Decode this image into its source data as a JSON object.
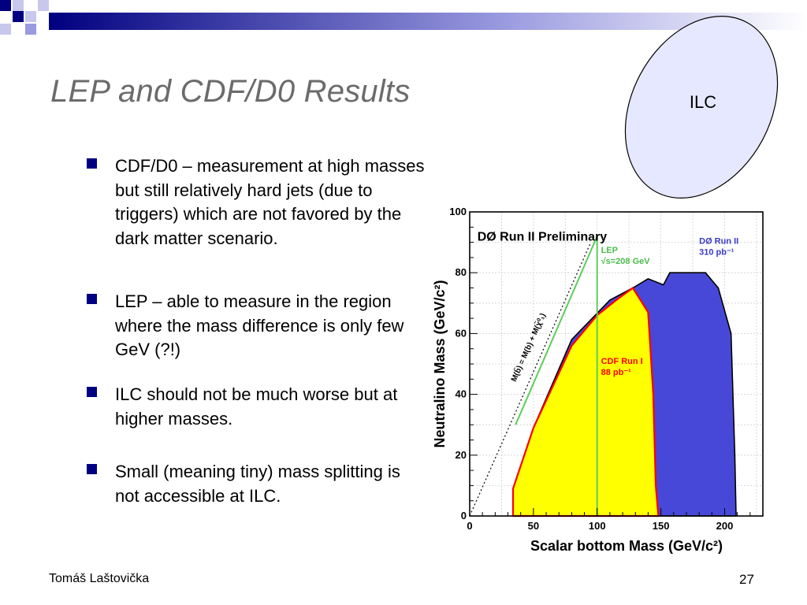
{
  "slide": {
    "title": "LEP and CDF/D0 Results",
    "ellipse_label": "ILC",
    "bullets": [
      "CDF/D0 – measurement at high masses but still relatively hard jets (due to triggers) which are not favored by the dark matter scenario.",
      "LEP – able to measure in the region where the mass difference is only few GeV (?!)",
      "ILC should not be much worse but at higher masses.",
      "Small (meaning tiny) mass splitting is not accessible at ILC."
    ],
    "footer_author": "Tomáš Laštovička",
    "page_number": "27",
    "colors": {
      "accent": "#000080",
      "title_gray": "#6b6b6b",
      "ellipse_fill": "#e6e8ff",
      "d0_region": "#4848d8",
      "cdf_region": "#ffff00",
      "cdf_outline": "#ff0000",
      "lep_line": "#5ccc5c"
    }
  },
  "chart_data": {
    "type": "area",
    "title": "DØ Run II Preliminary",
    "xlabel": "Scalar bottom Mass (GeV/c²)",
    "ylabel": "Neutralino Mass (GeV/c²)",
    "xlim": [
      0,
      230
    ],
    "ylim": [
      0,
      100
    ],
    "x_ticks": [
      0,
      50,
      100,
      150,
      200
    ],
    "y_ticks": [
      0,
      20,
      40,
      60,
      80,
      100
    ],
    "grid": true,
    "series": [
      {
        "name": "DØ Run II 310 pb⁻¹",
        "legend_lines": [
          "DØ Run II",
          "310 pb⁻¹"
        ],
        "color": "#4848d8",
        "boundary": [
          [
            34,
            0
          ],
          [
            37,
            10
          ],
          [
            50,
            29
          ],
          [
            80,
            58
          ],
          [
            110,
            71
          ],
          [
            128,
            75
          ],
          [
            140,
            78
          ],
          [
            152,
            76
          ],
          [
            157,
            80
          ],
          [
            185,
            80
          ],
          [
            195,
            75
          ],
          [
            205,
            60
          ],
          [
            208,
            20
          ],
          [
            209,
            0
          ]
        ]
      },
      {
        "name": "CDF Run I 88 pb⁻¹",
        "legend_lines": [
          "CDF Run I",
          "88 pb⁻¹"
        ],
        "color": "#ffff00",
        "outline": "#ff0000",
        "boundary": [
          [
            34,
            0
          ],
          [
            34,
            9
          ],
          [
            50,
            29
          ],
          [
            80,
            56
          ],
          [
            100,
            66
          ],
          [
            115,
            71
          ],
          [
            128,
            75
          ],
          [
            140,
            67
          ],
          [
            144,
            40
          ],
          [
            146,
            10
          ],
          [
            148,
            0
          ]
        ]
      },
      {
        "name": "LEP √s=208 GeV",
        "legend_lines": [
          "LEP",
          "√s=208 GeV"
        ],
        "color": "#5ccc5c",
        "points": [
          [
            100,
            0
          ],
          [
            100,
            92
          ],
          [
            36,
            30
          ]
        ]
      }
    ],
    "annotations": [
      {
        "text": "M(b̃) = M(b) + M(χ̃⁰₁)",
        "type": "kinematic-limit-line",
        "line": [
          [
            0,
            0
          ],
          [
            95,
            90
          ]
        ]
      }
    ]
  }
}
